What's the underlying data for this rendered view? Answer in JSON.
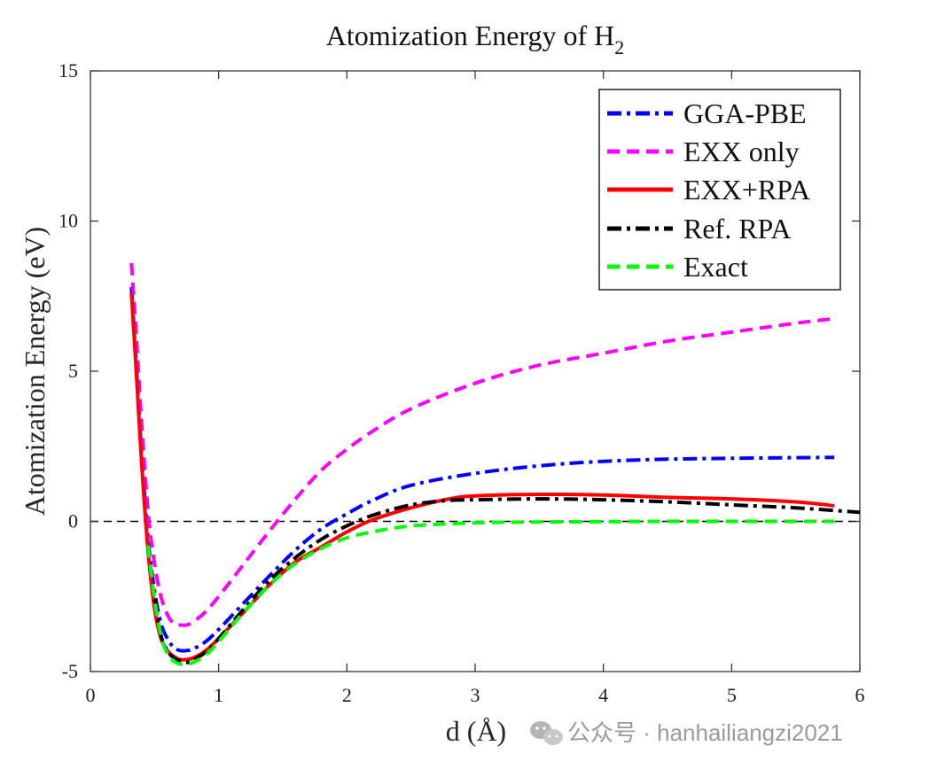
{
  "chart_data": {
    "type": "line",
    "title": "Atomization Energy of H",
    "title_subscript": "2",
    "xlabel": "d (Å)",
    "ylabel": "Atomization Energy (eV)",
    "xlim": [
      0,
      6
    ],
    "ylim": [
      -5,
      15
    ],
    "xticks": [
      0,
      1,
      2,
      3,
      4,
      5,
      6
    ],
    "yticks": [
      -5,
      0,
      5,
      10,
      15
    ],
    "grid": false,
    "legend_position": "top-right",
    "reference_line": {
      "y": 0,
      "style": "dashed",
      "color": "#000000"
    },
    "series": [
      {
        "name": "GGA-PBE",
        "color": "#0000ff",
        "style": "dashdot",
        "width": 4,
        "x": [
          0.32,
          0.36,
          0.4,
          0.45,
          0.5,
          0.55,
          0.6,
          0.65,
          0.7,
          0.75,
          0.8,
          0.9,
          1.0,
          1.2,
          1.4,
          1.6,
          1.8,
          2.0,
          2.2,
          2.5,
          3.0,
          3.5,
          4.0,
          4.5,
          5.0,
          5.5,
          5.8
        ],
        "y": [
          7.8,
          5.0,
          2.2,
          -0.6,
          -2.3,
          -3.4,
          -3.9,
          -4.2,
          -4.3,
          -4.3,
          -4.25,
          -4.0,
          -3.6,
          -2.7,
          -1.8,
          -0.95,
          -0.25,
          0.25,
          0.7,
          1.2,
          1.6,
          1.85,
          2.0,
          2.07,
          2.1,
          2.12,
          2.13
        ]
      },
      {
        "name": "EXX only",
        "color": "#ff00ff",
        "style": "dashed",
        "width": 4,
        "x": [
          0.32,
          0.36,
          0.4,
          0.45,
          0.5,
          0.55,
          0.6,
          0.65,
          0.7,
          0.75,
          0.8,
          0.9,
          1.0,
          1.2,
          1.4,
          1.6,
          1.8,
          2.0,
          2.2,
          2.5,
          3.0,
          3.5,
          4.0,
          4.5,
          5.0,
          5.5,
          5.8
        ],
        "y": [
          8.6,
          6.0,
          3.2,
          0.3,
          -1.4,
          -2.5,
          -3.1,
          -3.4,
          -3.45,
          -3.45,
          -3.35,
          -3.0,
          -2.5,
          -1.4,
          -0.3,
          0.75,
          1.7,
          2.4,
          3.0,
          3.75,
          4.6,
          5.2,
          5.6,
          6.0,
          6.3,
          6.6,
          6.75
        ]
      },
      {
        "name": "EXX+RPA",
        "color": "#ff0000",
        "style": "solid",
        "width": 4,
        "x": [
          0.32,
          0.36,
          0.4,
          0.45,
          0.5,
          0.55,
          0.6,
          0.65,
          0.7,
          0.75,
          0.8,
          0.9,
          1.0,
          1.2,
          1.4,
          1.6,
          1.8,
          2.0,
          2.2,
          2.5,
          2.8,
          3.0,
          3.5,
          4.0,
          4.5,
          5.0,
          5.5,
          5.8
        ],
        "y": [
          7.6,
          4.8,
          1.9,
          -1.0,
          -2.9,
          -3.9,
          -4.3,
          -4.5,
          -4.6,
          -4.6,
          -4.55,
          -4.3,
          -3.9,
          -3.0,
          -2.1,
          -1.35,
          -0.85,
          -0.35,
          0.05,
          0.45,
          0.75,
          0.85,
          0.9,
          0.88,
          0.8,
          0.75,
          0.65,
          0.52
        ]
      },
      {
        "name": "Ref. RPA",
        "color": "#000000",
        "style": "dashdot",
        "width": 4,
        "x": [
          0.5,
          0.55,
          0.6,
          0.65,
          0.7,
          0.75,
          0.8,
          0.9,
          1.0,
          1.2,
          1.4,
          1.6,
          1.8,
          2.0,
          2.2,
          2.5,
          2.8,
          3.0,
          3.5,
          4.0,
          4.5,
          5.0,
          5.5,
          6.0
        ],
        "y": [
          -2.6,
          -3.8,
          -4.3,
          -4.55,
          -4.65,
          -4.7,
          -4.62,
          -4.35,
          -3.9,
          -2.9,
          -1.95,
          -1.2,
          -0.6,
          -0.15,
          0.2,
          0.55,
          0.7,
          0.72,
          0.75,
          0.72,
          0.65,
          0.55,
          0.45,
          0.3
        ]
      },
      {
        "name": "Exact",
        "color": "#00ff00",
        "style": "dashed",
        "width": 4,
        "x": [
          0.45,
          0.5,
          0.55,
          0.6,
          0.65,
          0.7,
          0.75,
          0.8,
          0.9,
          1.0,
          1.2,
          1.4,
          1.6,
          1.8,
          2.0,
          2.2,
          2.5,
          3.0,
          3.5,
          4.0,
          4.5,
          5.0,
          5.5,
          5.8
        ],
        "y": [
          -0.8,
          -2.6,
          -3.8,
          -4.4,
          -4.65,
          -4.75,
          -4.75,
          -4.7,
          -4.45,
          -4.0,
          -3.0,
          -2.1,
          -1.4,
          -0.9,
          -0.55,
          -0.35,
          -0.15,
          -0.05,
          -0.02,
          -0.01,
          0,
          0,
          0,
          0
        ]
      }
    ]
  },
  "watermark": {
    "icon": "wechat-icon",
    "text": "公众号 · hanhailiangzi2021"
  }
}
